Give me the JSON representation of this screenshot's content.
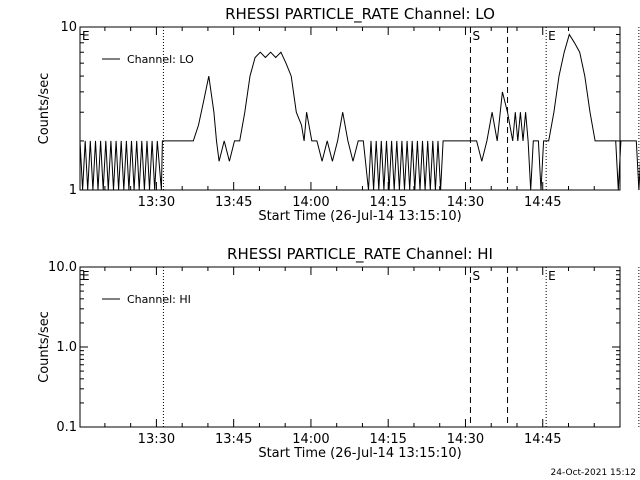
{
  "chart_data": [
    {
      "type": "line",
      "title": "RHESSI PARTICLE_RATE Channel: LO",
      "xlabel": "Start Time (26-Jul-14 13:15:10)",
      "ylabel": "Counts/sec",
      "yscale": "log",
      "ylim": [
        1,
        10
      ],
      "xlim": [
        "13:15:10",
        "15:00:00"
      ],
      "x_ticks": [
        "13:30",
        "13:45",
        "14:00",
        "14:15",
        "14:30",
        "14:45"
      ],
      "y_ticks": [
        "1",
        "10"
      ],
      "legend": {
        "position": "top-left",
        "entries": [
          "Channel: LO"
        ]
      },
      "series": [
        {
          "name": "Channel: LO",
          "x_minutes_label": "minutes after 13:15:10",
          "points": [
            [
              0,
              2
            ],
            [
              0.5,
              1
            ],
            [
              1,
              2
            ],
            [
              1.5,
              1
            ],
            [
              2,
              2
            ],
            [
              2.5,
              1
            ],
            [
              3,
              2
            ],
            [
              3.5,
              1
            ],
            [
              4,
              2
            ],
            [
              4.5,
              1
            ],
            [
              5,
              2
            ],
            [
              5.5,
              1
            ],
            [
              6,
              2
            ],
            [
              6.5,
              1
            ],
            [
              7,
              2
            ],
            [
              7.5,
              1
            ],
            [
              8,
              2
            ],
            [
              8.5,
              1
            ],
            [
              9,
              2
            ],
            [
              9.5,
              1
            ],
            [
              10,
              2
            ],
            [
              10.5,
              1
            ],
            [
              11,
              2
            ],
            [
              11.5,
              1
            ],
            [
              12,
              2
            ],
            [
              12.5,
              1
            ],
            [
              13,
              2
            ],
            [
              13.5,
              1
            ],
            [
              14,
              2
            ],
            [
              14.5,
              1
            ],
            [
              15,
              2
            ],
            [
              15.8,
              1
            ],
            [
              16,
              2
            ],
            [
              22,
              2
            ],
            [
              23,
              2.5
            ],
            [
              24,
              3.5
            ],
            [
              25,
              5
            ],
            [
              26,
              3
            ],
            [
              26.5,
              2
            ],
            [
              27,
              1.5
            ],
            [
              28,
              2
            ],
            [
              29,
              1.5
            ],
            [
              30,
              2
            ],
            [
              31,
              2
            ],
            [
              32,
              3
            ],
            [
              33,
              5
            ],
            [
              34,
              6.5
            ],
            [
              35,
              7
            ],
            [
              36,
              6.5
            ],
            [
              37,
              7
            ],
            [
              38,
              6.5
            ],
            [
              39,
              7
            ],
            [
              40,
              6
            ],
            [
              41,
              5
            ],
            [
              42,
              3
            ],
            [
              43,
              2.5
            ],
            [
              43.5,
              2
            ],
            [
              44,
              3
            ],
            [
              45,
              2
            ],
            [
              46,
              2
            ],
            [
              47,
              1.5
            ],
            [
              48,
              2
            ],
            [
              49,
              1.5
            ],
            [
              50,
              2
            ],
            [
              51,
              3
            ],
            [
              52,
              2
            ],
            [
              53,
              1.5
            ],
            [
              54,
              2
            ],
            [
              55,
              2
            ],
            [
              56,
              1
            ],
            [
              56.5,
              2
            ],
            [
              57,
              1
            ],
            [
              57.5,
              2
            ],
            [
              58,
              1
            ],
            [
              58.5,
              2
            ],
            [
              59,
              1
            ],
            [
              59.5,
              2
            ],
            [
              60,
              1
            ],
            [
              60.5,
              2
            ],
            [
              61,
              1
            ],
            [
              61.5,
              2
            ],
            [
              62,
              1
            ],
            [
              62.5,
              2
            ],
            [
              63,
              1
            ],
            [
              63.5,
              2
            ],
            [
              64,
              1
            ],
            [
              64.5,
              2
            ],
            [
              65,
              1
            ],
            [
              65.5,
              2
            ],
            [
              66,
              1
            ],
            [
              66.5,
              2
            ],
            [
              67,
              1
            ],
            [
              67.5,
              2
            ],
            [
              68,
              1
            ],
            [
              68.5,
              2
            ],
            [
              69,
              1
            ],
            [
              69.5,
              2
            ],
            [
              70,
              1
            ],
            [
              70.5,
              2
            ],
            [
              71,
              2
            ],
            [
              76,
              2
            ],
            [
              77,
              2
            ],
            [
              78,
              1.5
            ],
            [
              79,
              2
            ],
            [
              80,
              3
            ],
            [
              81,
              2
            ],
            [
              82,
              4
            ],
            [
              83,
              3
            ],
            [
              84,
              2
            ],
            [
              84.5,
              3
            ],
            [
              85,
              2
            ],
            [
              85.5,
              3
            ],
            [
              86,
              2
            ],
            [
              86.5,
              3
            ],
            [
              87,
              2
            ],
            [
              87.5,
              1
            ],
            [
              88,
              2
            ],
            [
              89,
              2
            ],
            [
              89.5,
              1
            ],
            [
              90,
              2
            ],
            [
              91,
              2
            ],
            [
              92,
              3
            ],
            [
              93,
              5
            ],
            [
              94,
              7
            ],
            [
              95,
              9
            ],
            [
              96,
              8
            ],
            [
              97,
              7
            ],
            [
              98,
              5
            ],
            [
              99,
              3
            ],
            [
              100,
              2
            ],
            [
              101,
              2
            ],
            [
              102,
              2
            ],
            [
              103,
              2
            ],
            [
              104,
              2
            ],
            [
              104.5,
              1
            ],
            [
              105,
              2
            ],
            [
              106,
              2
            ],
            [
              107,
              2
            ],
            [
              108,
              2
            ],
            [
              108.5,
              1
            ],
            [
              109,
              2
            ]
          ]
        }
      ],
      "annotations": [
        {
          "text": "E",
          "x_minutes": 0,
          "line": "none"
        },
        {
          "text": "",
          "x_minutes": 16.2,
          "line": "dotted"
        },
        {
          "text": "S",
          "x_minutes": 75.8,
          "line": "dashed"
        },
        {
          "text": "",
          "x_minutes": 83.0,
          "line": "dashed"
        },
        {
          "text": "E",
          "x_minutes": 90.5,
          "line": "dotted"
        },
        {
          "text": "",
          "x_minutes": 108.5,
          "line": "dotted"
        }
      ]
    },
    {
      "type": "line",
      "title": "RHESSI PARTICLE_RATE Channel: HI",
      "xlabel": "Start Time (26-Jul-14 13:15:10)",
      "ylabel": "Counts/sec",
      "yscale": "log",
      "ylim": [
        0.1,
        10
      ],
      "xlim": [
        "13:15:10",
        "15:00:00"
      ],
      "x_ticks": [
        "13:30",
        "13:45",
        "14:00",
        "14:15",
        "14:30",
        "14:45"
      ],
      "y_ticks": [
        "10.0",
        "1.0",
        "0.1"
      ],
      "legend": {
        "position": "top-left",
        "entries": [
          "Channel: HI"
        ]
      },
      "series": [
        {
          "name": "Channel: HI",
          "points": []
        }
      ],
      "annotations": [
        {
          "text": "E",
          "x_minutes": 0,
          "line": "none"
        },
        {
          "text": "",
          "x_minutes": 16.2,
          "line": "dotted"
        },
        {
          "text": "S",
          "x_minutes": 75.8,
          "line": "dashed"
        },
        {
          "text": "",
          "x_minutes": 83.0,
          "line": "dashed"
        },
        {
          "text": "E",
          "x_minutes": 90.5,
          "line": "dotted"
        },
        {
          "text": "",
          "x_minutes": 108.5,
          "line": "dotted"
        }
      ]
    }
  ],
  "footer": {
    "timestamp": "24-Oct-2021 15:12"
  }
}
